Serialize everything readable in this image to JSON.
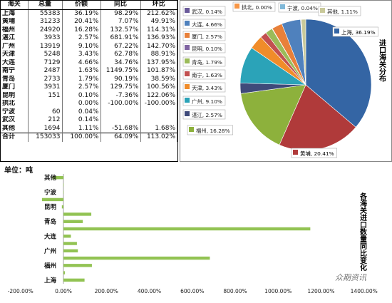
{
  "table": {
    "headers": [
      "海关",
      "总量",
      "价额",
      "同比",
      "环比"
    ],
    "rows": [
      [
        "上海",
        "55383",
        "36.19%",
        "98.29%",
        "212.62%"
      ],
      [
        "黄埔",
        "31233",
        "20.41%",
        "7.07%",
        "49.91%"
      ],
      [
        "福州",
        "24920",
        "16.28%",
        "132.57%",
        "114.31%"
      ],
      [
        "湛江",
        "3933",
        "2.57%",
        "681.91%",
        "136.93%"
      ],
      [
        "广州",
        "13919",
        "9.10%",
        "67.22%",
        "142.70%"
      ],
      [
        "天津",
        "5248",
        "3.43%",
        "62.78%",
        "88.91%"
      ],
      [
        "大连",
        "7129",
        "4.66%",
        "34.76%",
        "137.95%"
      ],
      [
        "南宁",
        "2487",
        "1.63%",
        "1149.75%",
        "101.87%"
      ],
      [
        "青岛",
        "2733",
        "1.79%",
        "90.19%",
        "38.59%"
      ],
      [
        "厦门",
        "3931",
        "2.57%",
        "129.75%",
        "100.56%"
      ],
      [
        "昆明",
        "151",
        "0.10%",
        "-7.36%",
        "122.06%"
      ],
      [
        "拱北",
        "",
        "0.00%",
        "-100.00%",
        "-100.00%"
      ],
      [
        "宁波",
        "60",
        "0.04%",
        "",
        ""
      ],
      [
        "武汉",
        "212",
        "0.14%",
        "",
        ""
      ],
      [
        "其他",
        "1694",
        "1.11%",
        "-51.68%",
        "1.68%"
      ],
      [
        "合计",
        "153033",
        "100.00%",
        "64.09%",
        "113.02%"
      ]
    ]
  },
  "unit_label": "单位：吨",
  "watermark": "众期资讯",
  "chart_data": [
    {
      "type": "pie",
      "title": "进口海关分布",
      "slices": [
        {
          "name": "上海",
          "value": 36.19,
          "label": "上海, 36.19%",
          "color": "#3465a4"
        },
        {
          "name": "黄埔",
          "value": 20.41,
          "label": "黄埔, 20.41%",
          "color": "#b03a3a"
        },
        {
          "name": "福州",
          "value": 16.28,
          "label": "福州, 16.28%",
          "color": "#8db13c"
        },
        {
          "name": "湛江",
          "value": 2.57,
          "label": "湛江, 2.57%",
          "color": "#3f4a7a"
        },
        {
          "name": "广州",
          "value": 9.1,
          "label": "广州, 9.10%",
          "color": "#2ba3b8"
        },
        {
          "name": "天津",
          "value": 3.43,
          "label": "天津, 3.43%",
          "color": "#f08c2a"
        },
        {
          "name": "南宁",
          "value": 1.63,
          "label": "南宁, 1.63%",
          "color": "#c25050"
        },
        {
          "name": "青岛",
          "value": 1.79,
          "label": "青岛, 1.79%",
          "color": "#9bbb59"
        },
        {
          "name": "昆明",
          "value": 0.1,
          "label": "昆明, 0.10%",
          "color": "#8064a2"
        },
        {
          "name": "厦门",
          "value": 2.57,
          "label": "厦门, 2.57%",
          "color": "#e8803a"
        },
        {
          "name": "大连",
          "value": 4.66,
          "label": "大连, 4.66%",
          "color": "#4f81bd"
        },
        {
          "name": "武汉",
          "value": 0.14,
          "label": "武汉, 0.14%",
          "color": "#6a5a9a"
        },
        {
          "name": "拱北",
          "value": 0.0,
          "label": "拱北, 0.00%",
          "color": "#f79646"
        },
        {
          "name": "宁波",
          "value": 0.04,
          "label": "宁波, 0.04%",
          "color": "#7fb8d8"
        },
        {
          "name": "其他",
          "value": 1.11,
          "label": "其他, 1.11%",
          "color": "#c9c99a"
        }
      ]
    },
    {
      "type": "bar",
      "orientation": "horizontal",
      "title": "各海关进口数量同比变化",
      "categories": [
        "上海",
        "黄埔",
        "福州",
        "湛江",
        "广州",
        "天津",
        "大连",
        "南宁",
        "青岛",
        "厦门",
        "昆明",
        "拱北",
        "宁波",
        "武汉",
        "其他"
      ],
      "y_labels_shown": [
        "上海",
        "福州",
        "广州",
        "大连",
        "青岛",
        "昆明",
        "宁波",
        "其他"
      ],
      "series": [
        {
          "values": [
            98.29,
            7.07,
            132.57,
            681.91,
            67.22,
            62.78,
            34.76,
            1149.75,
            90.19,
            129.75,
            -7.36,
            -100.0,
            0,
            0,
            -51.68
          ]
        }
      ],
      "xlim": [
        -200,
        1400
      ],
      "x_ticks": [
        "-200.00%",
        "0.00%",
        "200.00%",
        "400.00%",
        "600.00%",
        "800.00%",
        "1000.00%",
        "1200.00%",
        "1400.00%"
      ],
      "color": "#92c353"
    }
  ]
}
